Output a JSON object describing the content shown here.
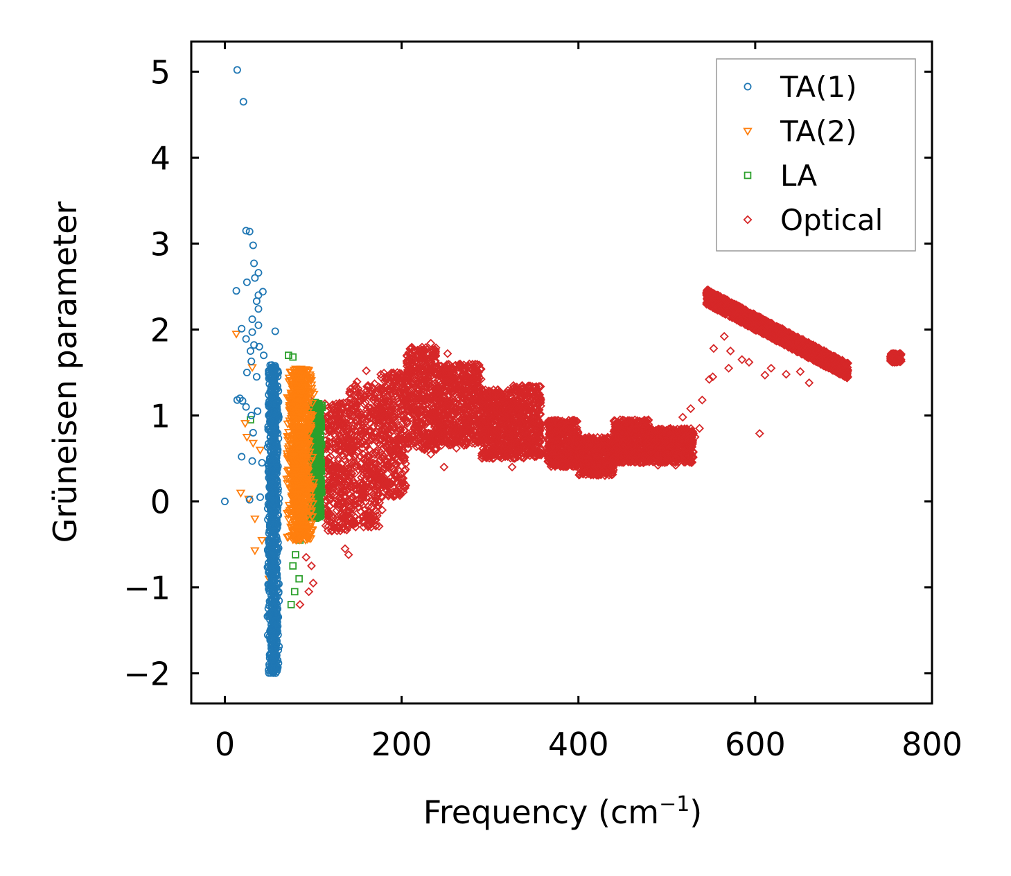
{
  "chart_data": {
    "type": "scatter",
    "xlabel": "Frequency (cm",
    "xlabel_unit_exp": "−1",
    "xlabel_close": ")",
    "ylabel": "Grüneisen parameter",
    "xlim": [
      -38,
      800
    ],
    "ylim": [
      -2.35,
      5.35
    ],
    "xticks": [
      0,
      200,
      400,
      600,
      800
    ],
    "xtick_labels": [
      "0",
      "200",
      "400",
      "600",
      "800"
    ],
    "yticks": [
      -2,
      -1,
      0,
      1,
      2,
      3,
      4,
      5
    ],
    "ytick_labels": [
      "−2",
      "−1",
      "0",
      "1",
      "2",
      "3",
      "4",
      "5"
    ],
    "legend_position": "top-right",
    "series": [
      {
        "name": "TA(1)",
        "marker": "circle",
        "color": "#1f77b4",
        "points": [
          [
            0,
            0
          ],
          [
            14,
            5.02
          ],
          [
            21,
            4.65
          ],
          [
            24,
            3.15
          ],
          [
            28,
            3.14
          ],
          [
            32,
            2.98
          ],
          [
            33,
            2.77
          ],
          [
            38,
            2.66
          ],
          [
            34,
            2.6
          ],
          [
            25,
            2.55
          ],
          [
            13,
            2.45
          ],
          [
            43,
            2.44
          ],
          [
            38,
            2.4
          ],
          [
            36,
            2.33
          ],
          [
            38,
            2.24
          ],
          [
            31,
            2.12
          ],
          [
            38,
            2.05
          ],
          [
            19,
            2.01
          ],
          [
            31,
            1.97
          ],
          [
            57,
            1.98
          ],
          [
            24,
            1.89
          ],
          [
            33,
            1.82
          ],
          [
            39,
            1.8
          ],
          [
            29,
            1.75
          ],
          [
            44,
            1.7
          ],
          [
            30,
            1.63
          ],
          [
            25,
            1.5
          ],
          [
            36,
            1.45
          ],
          [
            20,
            1.17
          ],
          [
            14,
            1.18
          ],
          [
            17,
            1.2
          ],
          [
            24,
            1.1
          ],
          [
            37,
            1.05
          ],
          [
            30,
            1.0
          ],
          [
            32,
            0.8
          ],
          [
            19,
            0.52
          ],
          [
            31,
            0.47
          ],
          [
            42,
            0.45
          ],
          [
            28,
            0.02
          ],
          [
            40,
            0.05
          ]
        ],
        "dense_band": {
          "x_center": 55,
          "x_spread": 7,
          "y_range": [
            -2.0,
            1.6
          ]
        }
      },
      {
        "name": "TA(2)",
        "marker": "triangle-down",
        "color": "#ff7f0e",
        "points": [
          [
            13,
            1.95
          ],
          [
            31,
            1.56
          ],
          [
            23,
            0.91
          ],
          [
            25,
            0.75
          ],
          [
            32,
            0.68
          ],
          [
            40,
            0.6
          ],
          [
            18,
            0.1
          ],
          [
            27,
            0.03
          ],
          [
            34,
            -0.2
          ],
          [
            42,
            -0.45
          ],
          [
            34,
            -0.57
          ],
          [
            50,
            -0.9
          ]
        ],
        "dense_band": {
          "x_center": 85,
          "x_spread": 16,
          "y_range": [
            -0.45,
            1.55
          ]
        }
      },
      {
        "name": "LA",
        "marker": "square",
        "color": "#2ca02c",
        "points": [
          [
            29,
            0.95
          ],
          [
            77,
            1.68
          ],
          [
            72,
            1.7
          ],
          [
            85,
            -0.45
          ],
          [
            80,
            -0.62
          ],
          [
            77,
            -0.75
          ],
          [
            84,
            -0.9
          ],
          [
            79,
            -1.05
          ],
          [
            75,
            -1.2
          ]
        ],
        "dense_band": {
          "x_center": 103,
          "x_spread": 7,
          "y_range": [
            -0.2,
            1.15
          ]
        }
      },
      {
        "name": "Optical",
        "marker": "diamond",
        "color": "#d62728",
        "points": [
          [
            110,
            0.85
          ],
          [
            95,
            1.2
          ],
          [
            92,
            -0.65
          ],
          [
            98,
            -0.75
          ],
          [
            100,
            -0.95
          ],
          [
            95,
            -1.05
          ],
          [
            85,
            -1.2
          ],
          [
            140,
            -0.62
          ],
          [
            136,
            -0.55
          ],
          [
            160,
            1.52
          ],
          [
            178,
            -0.1
          ],
          [
            190,
            1.35
          ],
          [
            214,
            1.65
          ],
          [
            233,
            1.84
          ],
          [
            252,
            1.72
          ],
          [
            280,
            0.95
          ],
          [
            300,
            1.25
          ],
          [
            330,
            1.1
          ],
          [
            233,
            0.55
          ],
          [
            248,
            0.4
          ],
          [
            262,
            0.62
          ],
          [
            274,
            0.68
          ],
          [
            303,
            0.5
          ],
          [
            325,
            0.4
          ],
          [
            370,
            0.55
          ],
          [
            430,
            0.3
          ],
          [
            465,
            0.85
          ],
          [
            490,
            0.42
          ],
          [
            510,
            0.42
          ],
          [
            518,
            0.98
          ],
          [
            527,
            1.08
          ],
          [
            532,
            0.75
          ],
          [
            537,
            0.85
          ],
          [
            540,
            1.18
          ],
          [
            552,
            1.45
          ],
          [
            548,
            1.42
          ],
          [
            553,
            1.78
          ],
          [
            565,
            1.92
          ],
          [
            572,
            1.75
          ],
          [
            585,
            1.65
          ],
          [
            593,
            1.62
          ],
          [
            611,
            1.47
          ],
          [
            618,
            1.55
          ],
          [
            635,
            1.48
          ],
          [
            651,
            1.51
          ],
          [
            661,
            1.38
          ],
          [
            690,
            1.52
          ],
          [
            605,
            0.79
          ],
          [
            570,
            1.55
          ]
        ],
        "dense_bands": [
          {
            "x_range": [
              112,
              140
            ],
            "y_range": [
              -0.35,
              1.15
            ]
          },
          {
            "x_range": [
              140,
              175
            ],
            "y_range": [
              -0.3,
              1.4
            ]
          },
          {
            "x_range": [
              175,
              205
            ],
            "y_range": [
              0.05,
              1.5
            ]
          },
          {
            "x_range": [
              205,
              240
            ],
            "y_range": [
              0.6,
              1.8
            ]
          },
          {
            "x_range": [
              240,
              290
            ],
            "y_range": [
              0.65,
              1.6
            ]
          },
          {
            "x_range": [
              290,
              325
            ],
            "y_range": [
              0.5,
              1.3
            ]
          },
          {
            "x_range": [
              325,
              358
            ],
            "y_range": [
              0.5,
              1.35
            ]
          },
          {
            "x_range": [
              365,
              400
            ],
            "y_range": [
              0.4,
              0.95
            ]
          },
          {
            "x_range": [
              400,
              440
            ],
            "y_range": [
              0.3,
              0.75
            ]
          },
          {
            "x_range": [
              440,
              480
            ],
            "y_range": [
              0.45,
              0.95
            ]
          },
          {
            "x_range": [
              480,
              530
            ],
            "y_range": [
              0.45,
              0.85
            ]
          },
          {
            "x_range": [
              545,
              705
            ],
            "y_from": [
              2.38,
              1.52
            ],
            "thickness": 0.18
          },
          {
            "x_range": [
              753,
              765
            ],
            "y_range": [
              1.62,
              1.72
            ]
          }
        ]
      }
    ]
  }
}
